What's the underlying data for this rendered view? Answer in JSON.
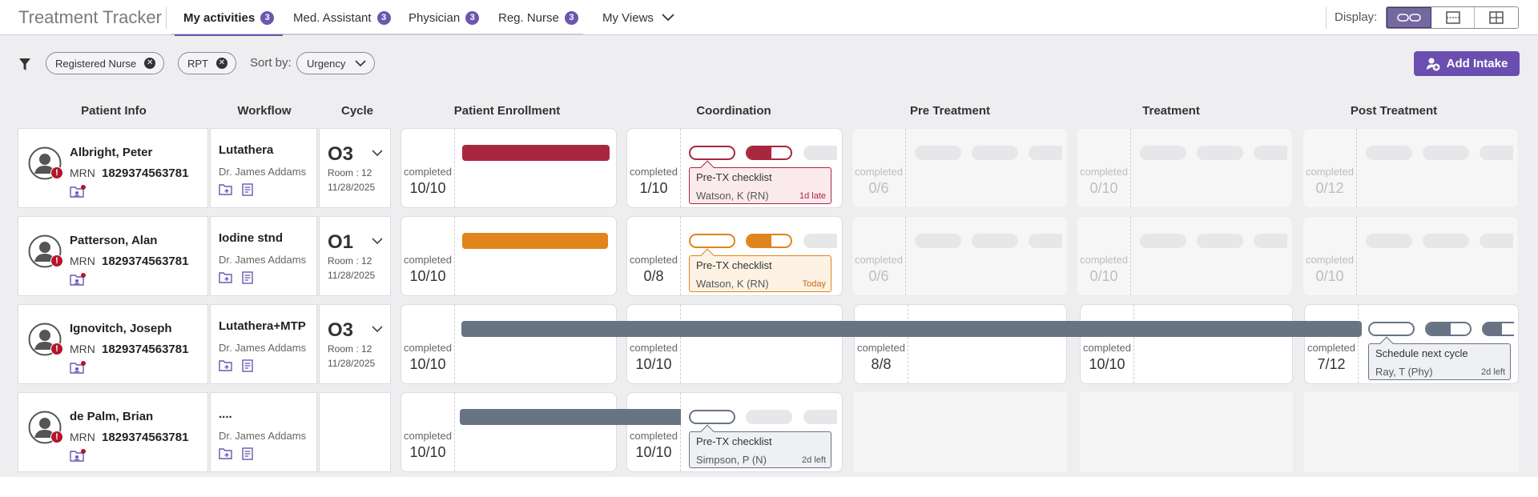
{
  "app": {
    "title": "Treatment Tracker"
  },
  "tabs": [
    {
      "label": "My activities",
      "count": "3"
    },
    {
      "label": "Med. Assistant",
      "count": "3"
    },
    {
      "label": "Physician",
      "count": "3"
    },
    {
      "label": "Reg. Nurse",
      "count": "3"
    }
  ],
  "my_views": "My Views",
  "display_label": "Display:",
  "filters": [
    "Registered Nurse",
    "RPT"
  ],
  "sort": {
    "label": "Sort by:",
    "value": "Urgency"
  },
  "add_intake": "Add Intake",
  "columns": {
    "patient": "Patient Info",
    "workflow": "Workflow",
    "cycle": "Cycle",
    "enrollment": "Patient Enrollment",
    "coordination": "Coordination",
    "pre": "Pre Treatment",
    "treatment": "Treatment",
    "post": "Post Treatment"
  },
  "completed_label": "completed",
  "colors": {
    "accent": "#6b56b0",
    "late": "#a8273e",
    "today": "#e0841c",
    "neutral": "#687384"
  },
  "rows": [
    {
      "name": "Albright, Peter",
      "mrn_label": "MRN",
      "mrn": "1829374563781",
      "workflow": "Lutathera",
      "doctor": "Dr. James Addams",
      "cycle": "O3",
      "room": "Room : 12",
      "date": "11/28/2025",
      "enrollment": "10/10",
      "coordination": "1/10",
      "pre": "0/6",
      "treatment": "0/10",
      "post": "0/12",
      "task": {
        "title": "Pre-TX checklist",
        "who": "Watson, K (RN)",
        "due": "1d late"
      }
    },
    {
      "name": "Patterson, Alan",
      "mrn_label": "MRN",
      "mrn": "1829374563781",
      "workflow": "Iodine stnd",
      "doctor": "Dr. James Addams",
      "cycle": "O1",
      "room": "Room : 12",
      "date": "11/28/2025",
      "enrollment": "10/10",
      "coordination": "0/8",
      "pre": "0/6",
      "treatment": "0/10",
      "post": "0/10",
      "task": {
        "title": "Pre-TX checklist",
        "who": "Watson, K (RN)",
        "due": "Today"
      }
    },
    {
      "name": "Ignovitch, Joseph",
      "mrn_label": "MRN",
      "mrn": "1829374563781",
      "workflow": "Lutathera+MTP",
      "doctor": "Dr. James Addams",
      "cycle": "O3",
      "room": "Room : 12",
      "date": "11/28/2025",
      "enrollment": "10/10",
      "coordination": "10/10",
      "pre": "8/8",
      "treatment": "10/10",
      "post": "7/12",
      "task": {
        "title": "Schedule next cycle",
        "who": "Ray, T (Phy)",
        "due": "2d left"
      }
    },
    {
      "name": "de Palm, Brian",
      "mrn_label": "MRN",
      "mrn": "1829374563781",
      "workflow": "....",
      "doctor": "Dr. James Addams",
      "enrollment": "10/10",
      "coordination": "10/10",
      "task": {
        "title": "Pre-TX checklist",
        "who": "Simpson, P (N)",
        "due": "2d left"
      }
    }
  ]
}
